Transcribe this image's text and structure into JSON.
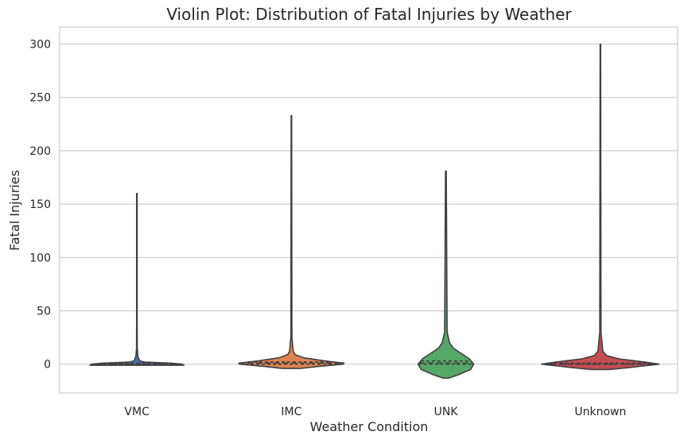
{
  "chart_data": {
    "type": "violin",
    "title": "Violin Plot: Distribution of Fatal Injuries by Weather",
    "xlabel": "Weather Condition",
    "ylabel": "Fatal Injuries",
    "categories": [
      "VMC",
      "IMC",
      "UNK",
      "Unknown"
    ],
    "ylim": [
      -27,
      316
    ],
    "yticks": [
      0,
      50,
      100,
      150,
      200,
      250,
      300
    ],
    "grid": true,
    "inner": "quartile",
    "series": [
      {
        "category": "VMC",
        "color": "#4c72b0",
        "min": -1,
        "max": 160,
        "q1": 0,
        "median": 0,
        "q3": 1,
        "density": [
          [
            -1,
            0.76
          ],
          [
            0,
            0.73
          ],
          [
            1,
            0.55
          ],
          [
            2,
            0.12
          ],
          [
            3,
            0.05
          ],
          [
            5,
            0.03
          ],
          [
            8,
            0.015
          ],
          [
            15,
            0.006
          ],
          [
            40,
            0.004
          ],
          [
            160,
            0.004
          ]
        ]
      },
      {
        "category": "IMC",
        "color": "#dd8452",
        "min": -4,
        "max": 233,
        "q1": 0,
        "median": 1,
        "q3": 2,
        "density": [
          [
            -4,
            0.15
          ],
          [
            -2,
            0.45
          ],
          [
            0,
            0.84
          ],
          [
            1,
            0.85
          ],
          [
            3,
            0.55
          ],
          [
            6,
            0.2
          ],
          [
            9,
            0.06
          ],
          [
            12,
            0.03
          ],
          [
            25,
            0.008
          ],
          [
            233,
            0.004
          ]
        ]
      },
      {
        "category": "UNK",
        "color": "#55a868",
        "min": -13,
        "max": 181,
        "q1": 0,
        "median": 1,
        "q3": 3,
        "density": [
          [
            -13,
            0.05
          ],
          [
            -10,
            0.2
          ],
          [
            -5,
            0.4
          ],
          [
            0,
            0.45
          ],
          [
            5,
            0.38
          ],
          [
            10,
            0.25
          ],
          [
            15,
            0.12
          ],
          [
            20,
            0.06
          ],
          [
            30,
            0.02
          ],
          [
            181,
            0.006
          ]
        ]
      },
      {
        "category": "Unknown",
        "color": "#c44e52",
        "min": -5,
        "max": 300,
        "q1": 0,
        "median": 0,
        "q3": 1,
        "density": [
          [
            -5,
            0.15
          ],
          [
            -3,
            0.5
          ],
          [
            0,
            0.95
          ],
          [
            2,
            0.72
          ],
          [
            5,
            0.3
          ],
          [
            8,
            0.1
          ],
          [
            12,
            0.04
          ],
          [
            30,
            0.01
          ],
          [
            300,
            0.004
          ]
        ]
      }
    ]
  }
}
